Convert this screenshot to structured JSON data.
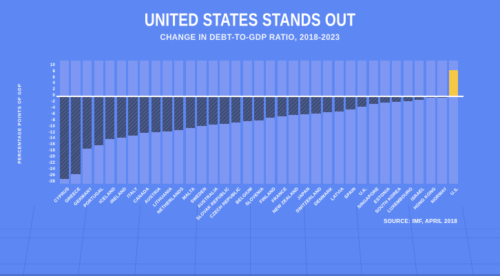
{
  "header": {
    "title": "UNITED STATES STANDS OUT",
    "subtitle": "CHANGE IN DEBT-TO-GDP RATIO, 2018-2023"
  },
  "source": "SOURCE: IMF, APRIL 2018",
  "chart_data": {
    "type": "bar",
    "title": "UNITED STATES STANDS OUT",
    "subtitle": "CHANGE IN DEBT-TO-GDP RATIO, 2018-2023",
    "ylabel": "PERCENTAGE POINTS OF GDP",
    "xlabel": "",
    "ylim": [
      -28,
      10
    ],
    "yticks": [
      10,
      8,
      6,
      4,
      2,
      0,
      -2,
      -4,
      -6,
      -8,
      -10,
      -12,
      -14,
      -16,
      -18,
      -20,
      -22,
      -24,
      -26,
      -28
    ],
    "grid": "full-height column bands, white zero line",
    "legend": "none",
    "categories": [
      "CYPRUS",
      "GREECE",
      "GERMANY",
      "PORTUGAL",
      "ICELAND",
      "IRELAND",
      "ITALY",
      "CANADA",
      "AUSTRIA",
      "LITHUANIA",
      "NETHERLANDS",
      "MALTA",
      "SWEDEN",
      "AUSTRALIA",
      "SLOVAK REPUBLIC",
      "CZECH REPUBLIC",
      "BELGIUM",
      "SLOVENIA",
      "FINLAND",
      "FRANCE",
      "NEW ZEALAND",
      "JAPAN",
      "SWITZERLAND",
      "DENMARK",
      "LATVIA",
      "SPAIN",
      "U.K.",
      "SINGAPORE",
      "ESTONIA",
      "SOUTH KOREA",
      "LUXEMBOURG",
      "ISRAEL",
      "HONG KONG",
      "NORWAY",
      "U.S."
    ],
    "values": [
      -26.8,
      -25.3,
      -17.0,
      -15.8,
      -13.8,
      -13.4,
      -12.6,
      -11.8,
      -11.6,
      -11.3,
      -10.8,
      -10.2,
      -9.6,
      -9.1,
      -8.8,
      -8.4,
      -8.0,
      -7.7,
      -6.9,
      -6.4,
      -6.0,
      -5.7,
      -5.4,
      -5.1,
      -4.7,
      -4.2,
      -3.3,
      -2.4,
      -1.9,
      -1.7,
      -1.3,
      -0.9,
      -0.3,
      -0.1,
      8.4
    ],
    "highlighted_category": "U.S.",
    "colors": {
      "background": "#5d87f3",
      "column_band": "#7e97f2",
      "negative_bar": "#3d4c77",
      "positive_bar": "#f7c845",
      "zero_line": "#fdfdfd",
      "text": "#ffffff"
    }
  }
}
